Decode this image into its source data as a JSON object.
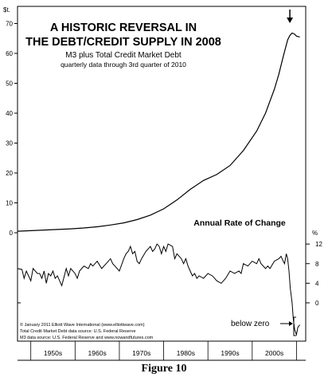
{
  "chart_data": [
    {
      "type": "line",
      "title": "A HISTORIC REVERSAL IN THE DEBT/CREDIT SUPPLY IN 2008",
      "title_lines": [
        "A HISTORIC REVERSAL IN",
        "THE DEBT/CREDIT SUPPLY IN 2008"
      ],
      "subtitle": "M3 plus Total Credit Market Debt",
      "subtitle2": "quarterly data through 3rd quarter of 2010",
      "ylabel": "$t.",
      "ylim": [
        0,
        72
      ],
      "yticks": [
        0,
        10,
        20,
        30,
        40,
        50,
        60,
        70
      ],
      "xlim": [
        1947,
        2011
      ],
      "xtick_labels": [
        "1950s",
        "1960s",
        "1970s",
        "1980s",
        "1990s",
        "2000s"
      ],
      "xtick_centers": [
        1955,
        1965,
        1975,
        1985,
        1995,
        2005
      ],
      "annotation_arrow_year": 2008.5,
      "series": [
        {
          "x": [
            1947,
            1950,
            1953,
            1956,
            1959,
            1962,
            1965,
            1968,
            1971,
            1974,
            1977,
            1980,
            1983,
            1986,
            1989,
            1992,
            1995,
            1998,
            2001,
            2003,
            2005,
            2006,
            2007,
            2008,
            2008.5,
            2009,
            2009.5,
            2010,
            2010.75
          ],
          "values": [
            0.5,
            0.7,
            0.9,
            1.1,
            1.3,
            1.6,
            2.0,
            2.6,
            3.3,
            4.4,
            5.9,
            8.0,
            11.0,
            14.5,
            17.5,
            19.5,
            22.5,
            27.5,
            34.0,
            40.0,
            48.0,
            53.0,
            59.0,
            64.5,
            66.0,
            66.8,
            66.5,
            65.8,
            65.5
          ]
        }
      ]
    },
    {
      "type": "line",
      "title": "Annual Rate of Change",
      "ylabel": "%",
      "ylim": [
        -7,
        13
      ],
      "yticks": [
        0,
        4,
        8,
        12
      ],
      "xlim": [
        1947,
        2011
      ],
      "annotation": "below zero",
      "series": [
        {
          "x": [
            1947.0,
            1948.0,
            1948.5,
            1949.0,
            1950.0,
            1950.5,
            1951.5,
            1952.0,
            1952.5,
            1953.0,
            1953.5,
            1954.0,
            1954.5,
            1955.0,
            1955.5,
            1956.0,
            1957.0,
            1958.0,
            1958.5,
            1959.0,
            1960.0,
            1960.5,
            1961.0,
            1962.0,
            1963.0,
            1963.5,
            1964.0,
            1965.0,
            1966.0,
            1967.0,
            1968.0,
            1968.5,
            1969.0,
            1970.0,
            1971.0,
            1971.5,
            1972.0,
            1972.5,
            1973.0,
            1973.5,
            1974.0,
            1974.5,
            1975.0,
            1976.0,
            1977.0,
            1977.5,
            1978.0,
            1978.5,
            1979.0,
            1979.5,
            1980.0,
            1980.5,
            1981.0,
            1982.0,
            1982.5,
            1983.0,
            1984.0,
            1984.5,
            1985.0,
            1985.5,
            1986.0,
            1986.5,
            1987.0,
            1987.5,
            1988.0,
            1989.0,
            1990.0,
            1991.0,
            1992.0,
            1993.0,
            1994.0,
            1995.0,
            1996.0,
            1997.0,
            1997.5,
            1998.0,
            1999.0,
            2000.0,
            2001.0,
            2001.5,
            2002.0,
            2003.0,
            2003.5,
            2004.0,
            2005.0,
            2006.0,
            2006.5,
            2007.0,
            2007.3,
            2007.7,
            2008.0,
            2008.3,
            2008.6,
            2009.0,
            2009.3,
            2009.6,
            2010.0,
            2010.3,
            2010.75
          ],
          "values": [
            7.0,
            6.8,
            5.0,
            6.5,
            4.5,
            7.0,
            6.0,
            6.0,
            5.0,
            6.5,
            4.0,
            6.0,
            5.5,
            6.5,
            5.0,
            5.5,
            3.5,
            7.0,
            5.5,
            7.0,
            6.0,
            5.0,
            6.5,
            7.5,
            7.0,
            8.0,
            7.5,
            8.5,
            7.0,
            8.0,
            9.0,
            8.0,
            7.5,
            6.5,
            9.0,
            10.0,
            10.5,
            11.5,
            10.0,
            10.5,
            8.5,
            8.0,
            9.0,
            10.5,
            11.5,
            10.5,
            11.0,
            12.0,
            11.5,
            10.0,
            11.5,
            10.5,
            12.0,
            11.5,
            9.0,
            10.0,
            9.0,
            8.0,
            9.0,
            7.5,
            6.5,
            5.5,
            6.0,
            5.0,
            5.5,
            5.0,
            6.0,
            5.5,
            4.5,
            4.0,
            5.0,
            6.5,
            6.0,
            6.5,
            6.0,
            8.0,
            7.5,
            8.5,
            8.0,
            9.0,
            8.0,
            7.0,
            7.5,
            7.0,
            8.5,
            9.0,
            9.5,
            8.5,
            8.0,
            10.0,
            9.0,
            6.5,
            3.0,
            0.0,
            -3.5,
            -5.5,
            -6.5,
            -5.0,
            -4.5
          ]
        }
      ]
    }
  ],
  "credits": [
    "© January 2011 Elliott Wave International (www.elliottwave.com)",
    "Total Credit Market Debt data source: U.S. Federal Reserve",
    "M3 data source: U.S. Federal Reserve and www.nowandfutures.com"
  ],
  "caption": "Figure 10"
}
